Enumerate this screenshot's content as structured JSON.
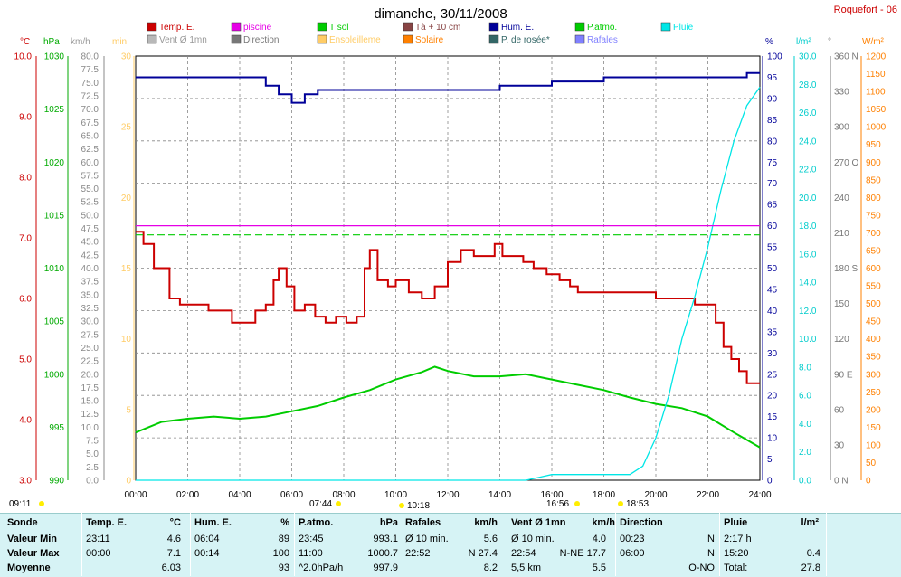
{
  "title": "dimanche, 30/11/2008",
  "station": "Roquefort - 06",
  "colors": {
    "temp": "#cc0000",
    "piscine": "#e600e6",
    "tsol": "#00cc00",
    "ta10": "#884444",
    "hum": "#000099",
    "patmo": "#00cc00",
    "pluie": "#00e6e6",
    "vent": "#b8b8b8",
    "direction": "#777777",
    "ensoleillement": "#ffcc66",
    "solaire": "#ff8000",
    "rosee": "#336666",
    "rafales": "#8080ff"
  },
  "legend": [
    {
      "label": "Temp. E.",
      "color": "#cc0000"
    },
    {
      "label": "piscine",
      "color": "#e600e6"
    },
    {
      "label": "T sol",
      "color": "#00cc00"
    },
    {
      "label": "Tà + 10 cm",
      "color": "#884444"
    },
    {
      "label": "Hum. E.",
      "color": "#000099"
    },
    {
      "label": "P.atmo.",
      "color": "#00cc00"
    },
    {
      "label": "Pluie",
      "color": "#00e6e6"
    },
    {
      "label": "Vent Ø 1mn",
      "color": "#b8b8b8"
    },
    {
      "label": "Direction",
      "color": "#777777"
    },
    {
      "label": "Ensoleilleme",
      "color": "#ffcc66"
    },
    {
      "label": "Solaire",
      "color": "#ff8000"
    },
    {
      "label": "P. de rosée*",
      "color": "#336666"
    },
    {
      "label": "Rafales",
      "color": "#8080ff"
    }
  ],
  "axes_units": {
    "temp": "°C",
    "hpa": "hPa",
    "kmh": "km/h",
    "min": "min",
    "pct": "%",
    "lm2": "l/m²",
    "deg": "°",
    "wm2": "W/m²"
  },
  "chart_data": {
    "type": "line",
    "x_ticks": [
      "00:00",
      "02:00",
      "04:00",
      "06:00",
      "08:00",
      "10:00",
      "12:00",
      "14:00",
      "16:00",
      "18:00",
      "20:00",
      "22:00",
      "24:00"
    ],
    "sun_markers": [
      "09:11",
      "07:44",
      "10:18",
      "16:56",
      "18:53"
    ],
    "axes": {
      "temp_c": {
        "range": [
          3.0,
          10.0
        ],
        "ticks": [
          "3.0",
          "4.0",
          "5.0",
          "6.0",
          "7.0",
          "8.0",
          "9.0",
          "10.0"
        ]
      },
      "hpa": {
        "range": [
          990,
          1030
        ],
        "ticks": [
          "990",
          "995",
          "1000",
          "1005",
          "1010",
          "1015",
          "1020",
          "1025",
          "1030"
        ]
      },
      "kmh": {
        "range": [
          0,
          80
        ],
        "ticks": [
          "0.0",
          "2.5",
          "5.0",
          "7.5",
          "10.0",
          "12.5",
          "15.0",
          "17.5",
          "20.0",
          "22.5",
          "25.0",
          "27.5",
          "30.0",
          "32.5",
          "35.0",
          "37.5",
          "40.0",
          "42.5",
          "45.0",
          "47.5",
          "50.0",
          "52.5",
          "55.0",
          "57.5",
          "60.0",
          "62.5",
          "65.0",
          "67.5",
          "70.0",
          "72.5",
          "75.0",
          "77.5",
          "80.0"
        ]
      },
      "min": {
        "range": [
          0,
          30
        ],
        "ticks": [
          "0",
          "5",
          "10",
          "15",
          "20",
          "25",
          "30"
        ]
      },
      "pct": {
        "range": [
          0,
          100
        ],
        "ticks": [
          "0",
          "5",
          "10",
          "15",
          "20",
          "25",
          "30",
          "35",
          "40",
          "45",
          "50",
          "55",
          "60",
          "65",
          "70",
          "75",
          "80",
          "85",
          "90",
          "95",
          "100"
        ]
      },
      "lm2": {
        "range": [
          0,
          30
        ],
        "ticks": [
          "0.0",
          "2.0",
          "4.0",
          "6.0",
          "8.0",
          "10.0",
          "12.0",
          "14.0",
          "16.0",
          "18.0",
          "20.0",
          "22.0",
          "24.0",
          "26.0",
          "28.0",
          "30.0"
        ]
      },
      "deg": {
        "range": [
          0,
          360
        ],
        "ticks": [
          "0 N",
          "30",
          "60",
          "90 E",
          "120",
          "150",
          "180 S",
          "210",
          "240",
          "270 O",
          "300",
          "330",
          "360 N"
        ]
      },
      "wm2": {
        "range": [
          0,
          1200
        ],
        "ticks": [
          "0",
          "50",
          "100",
          "150",
          "200",
          "250",
          "300",
          "350",
          "400",
          "450",
          "500",
          "550",
          "600",
          "650",
          "700",
          "750",
          "800",
          "850",
          "900",
          "950",
          "1000",
          "1050",
          "1100",
          "1150",
          "1200"
        ]
      }
    },
    "series": [
      {
        "name": "Temp. E.",
        "unit": "°C",
        "x": [
          0,
          0.3,
          0.7,
          1.3,
          1.7,
          2.2,
          2.8,
          3.3,
          3.7,
          4.2,
          4.6,
          5.0,
          5.3,
          5.5,
          5.8,
          6.1,
          6.5,
          6.9,
          7.3,
          7.7,
          8.1,
          8.5,
          8.8,
          9.0,
          9.3,
          9.7,
          10.0,
          10.5,
          11.0,
          11.5,
          12.0,
          12.5,
          13.0,
          13.4,
          13.8,
          14.1,
          14.5,
          14.9,
          15.3,
          15.8,
          16.3,
          16.7,
          17.0,
          17.5,
          18.0,
          19.0,
          20.0,
          20.5,
          21.0,
          21.5,
          22.0,
          22.3,
          22.6,
          22.9,
          23.2,
          23.5,
          24.0
        ],
        "y": [
          7.1,
          6.9,
          6.5,
          6.0,
          5.9,
          5.9,
          5.8,
          5.8,
          5.6,
          5.6,
          5.8,
          5.9,
          6.3,
          6.5,
          6.2,
          5.8,
          5.9,
          5.7,
          5.6,
          5.7,
          5.6,
          5.7,
          6.5,
          6.8,
          6.3,
          6.2,
          6.3,
          6.1,
          6.0,
          6.2,
          6.6,
          6.8,
          6.7,
          6.7,
          6.9,
          6.7,
          6.7,
          6.6,
          6.5,
          6.4,
          6.3,
          6.2,
          6.1,
          6.1,
          6.1,
          6.1,
          6.0,
          6.0,
          6.0,
          5.9,
          5.9,
          5.6,
          5.2,
          5.0,
          4.8,
          4.6,
          4.6
        ]
      },
      {
        "name": "Hum. E.",
        "unit": "%",
        "x": [
          0,
          1,
          2,
          3,
          4,
          5,
          5.5,
          6.0,
          6.5,
          7,
          8,
          9,
          10,
          11,
          12,
          13,
          14,
          15,
          16,
          17,
          18,
          19,
          20,
          21,
          22,
          22.5,
          23,
          23.5,
          24
        ],
        "y": [
          95,
          95,
          95,
          95,
          95,
          93,
          91,
          89,
          91,
          92,
          92,
          92,
          92,
          92,
          92,
          92,
          93,
          93,
          94,
          94,
          95,
          95,
          95,
          95,
          95,
          95,
          95,
          96,
          96
        ]
      },
      {
        "name": "P.atmo.",
        "unit": "hPa",
        "x": [
          0,
          1,
          2,
          3,
          4,
          5,
          6,
          7,
          8,
          9,
          10,
          11,
          11.5,
          12,
          13,
          14,
          15,
          16,
          17,
          18,
          19,
          20,
          21,
          22,
          23,
          23.5,
          24
        ],
        "y": [
          994.5,
          995.5,
          995.8,
          996.0,
          995.8,
          996.0,
          996.5,
          997.0,
          997.8,
          998.5,
          999.5,
          1000.2,
          1000.7,
          1000.3,
          999.8,
          999.8,
          1000.0,
          999.5,
          999.0,
          998.5,
          997.8,
          997.2,
          996.8,
          996.0,
          994.5,
          993.8,
          993.1
        ]
      },
      {
        "name": "Pluie",
        "unit": "l/m²",
        "x": [
          0,
          5,
          6.5,
          7,
          8,
          9,
          10,
          11,
          12,
          14,
          15,
          15.5,
          16,
          17,
          18,
          19,
          19.5,
          20,
          20.5,
          21,
          21.5,
          22,
          22.5,
          23,
          23.5,
          24
        ],
        "y": [
          0,
          0,
          0,
          0,
          0,
          0,
          0,
          0,
          0,
          0,
          0,
          0.2,
          0.4,
          0.4,
          0.4,
          0.4,
          1.0,
          3.0,
          6.0,
          10.0,
          13.0,
          16.5,
          20.5,
          24.0,
          26.5,
          27.8
        ]
      },
      {
        "name": "piscine",
        "unit": "°C",
        "x": [
          0,
          24
        ],
        "y": [
          7.2,
          7.2
        ]
      },
      {
        "name": "T sol",
        "unit": "°C",
        "x": [
          0,
          24
        ],
        "y": [
          7.05,
          7.05
        ]
      }
    ]
  },
  "summary": {
    "headers": [
      "Sonde",
      "Temp. E.",
      "°C",
      "Hum. E.",
      "%",
      "P.atmo.",
      "hPa",
      "Rafales",
      "km/h",
      "Vent Ø 1mn",
      "km/h",
      "Direction",
      "",
      "Pluie",
      "l/m²"
    ],
    "rows": [
      {
        "label": "Valeur Min",
        "temp_t": "23:11",
        "temp_v": "4.6",
        "hum_t": "06:04",
        "hum_v": "89",
        "patmo_t": "23:45",
        "patmo_v": "993.1",
        "raf_t": "Ø 10 min.",
        "raf_v": "5.6",
        "vent_t": "Ø 10 min.",
        "vent_v": "4.0",
        "dir_t": "00:23",
        "dir_v": "N",
        "pluie_t": "2:17 h",
        "pluie_v": ""
      },
      {
        "label": "Valeur Max",
        "temp_t": "00:00",
        "temp_v": "7.1",
        "hum_t": "00:14",
        "hum_v": "100",
        "patmo_t": "11:00",
        "patmo_v": "1000.7",
        "raf_t": "22:52",
        "raf_v": "N 27.4",
        "vent_t": "22:54",
        "vent_v": "N-NE 17.7",
        "dir_t": "06:00",
        "dir_v": "N",
        "pluie_t": "15:20",
        "pluie_v": "0.4"
      },
      {
        "label": "Moyenne",
        "temp_t": "",
        "temp_v": "6.03",
        "hum_t": "",
        "hum_v": "93",
        "patmo_t": "^2.0hPa/h",
        "patmo_v": "997.9",
        "raf_t": "",
        "raf_v": "8.2",
        "vent_t": "5,5 km",
        "vent_v": "5.5",
        "dir_t": "",
        "dir_v": "O-NO",
        "pluie_t": "Total:",
        "pluie_v": "27.8"
      }
    ]
  }
}
